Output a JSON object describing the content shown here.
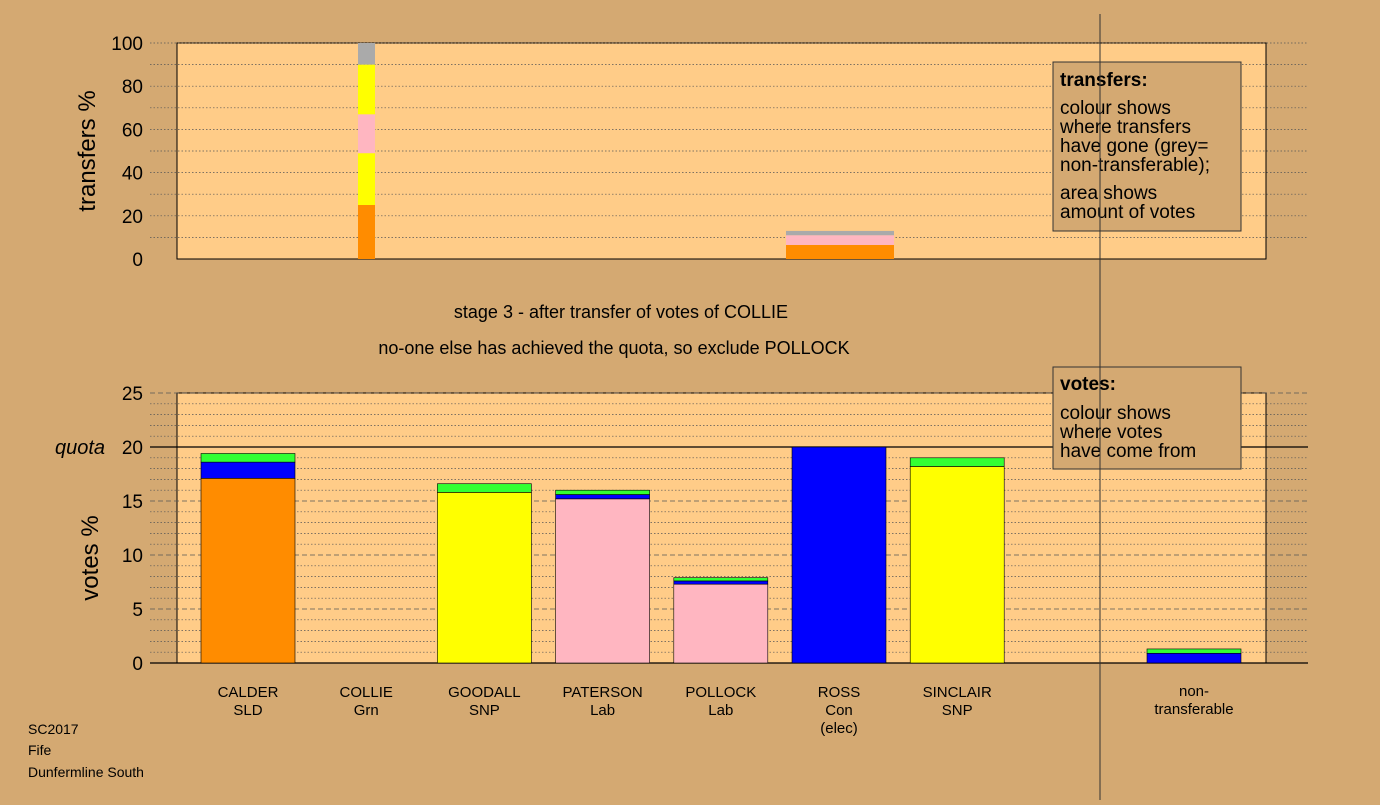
{
  "chart_data": [
    {
      "type": "bar",
      "ylabel": "transfers %",
      "ylim": [
        0,
        100
      ],
      "yticks": [
        0,
        20,
        40,
        60,
        80,
        100
      ],
      "grid": true,
      "bars": [
        {
          "candidate": "COLLIE",
          "segments": [
            {
              "party": "SLD",
              "color": "#ff8c00",
              "from": 0,
              "to": 25
            },
            {
              "party": "SNP",
              "color": "#ffff00",
              "from": 25,
              "to": 49
            },
            {
              "party": "Lab",
              "color": "#ffb6c1",
              "from": 49,
              "to": 67
            },
            {
              "party": "SNP",
              "color": "#ffff00",
              "from": 67,
              "to": 90
            },
            {
              "party": "non-transferable",
              "color": "#aaaaaa",
              "from": 90,
              "to": 100
            }
          ]
        },
        {
          "candidate": "ROSS",
          "segments": [
            {
              "party": "SLD",
              "color": "#ff8c00",
              "from": 0,
              "to": 6.5
            },
            {
              "party": "Lab",
              "color": "#ffb6c1",
              "from": 6.5,
              "to": 9
            },
            {
              "party": "Lab",
              "color": "#ffb6c1",
              "from": 9,
              "to": 11
            },
            {
              "party": "non-transferable",
              "color": "#aaaaaa",
              "from": 11,
              "to": 13
            }
          ]
        }
      ],
      "legend": {
        "title": "transfers:",
        "lines1": [
          "colour shows",
          "where transfers",
          "have gone (grey=",
          "non-transferable);"
        ],
        "lines2": [
          "area shows",
          "amount of votes"
        ]
      }
    },
    {
      "type": "bar",
      "ylabel": "votes %",
      "ylim": [
        0,
        25
      ],
      "yticks": [
        0,
        5,
        10,
        15,
        20,
        25
      ],
      "quota": 20,
      "quota_label": "quota",
      "grid": true,
      "categories": [
        {
          "name": "CALDER",
          "party": "SLD",
          "extra": ""
        },
        {
          "name": "COLLIE",
          "party": "Grn",
          "extra": ""
        },
        {
          "name": "GOODALL",
          "party": "SNP",
          "extra": ""
        },
        {
          "name": "PATERSON",
          "party": "Lab",
          "extra": ""
        },
        {
          "name": "POLLOCK",
          "party": "Lab",
          "extra": ""
        },
        {
          "name": "ROSS",
          "party": "Con",
          "extra": "(elec)"
        },
        {
          "name": "SINCLAIR",
          "party": "SNP",
          "extra": ""
        }
      ],
      "nontransferable_label": [
        "non-",
        "transferable"
      ],
      "bars": [
        {
          "candidate": "CALDER",
          "segments": [
            {
              "color": "#ff8c00",
              "from": 0,
              "to": 17.1
            },
            {
              "color": "#0000ff",
              "from": 17.1,
              "to": 18.6
            },
            {
              "color": "#33ff33",
              "from": 18.6,
              "to": 19.4
            }
          ]
        },
        {
          "candidate": "COLLIE",
          "segments": []
        },
        {
          "candidate": "GOODALL",
          "segments": [
            {
              "color": "#ffff00",
              "from": 0,
              "to": 15.8
            },
            {
              "color": "#33ff33",
              "from": 15.8,
              "to": 16.6
            }
          ]
        },
        {
          "candidate": "PATERSON",
          "segments": [
            {
              "color": "#ffb6c1",
              "from": 0,
              "to": 15.2
            },
            {
              "color": "#0000ff",
              "from": 15.2,
              "to": 15.6
            },
            {
              "color": "#33ff33",
              "from": 15.6,
              "to": 16.0
            }
          ]
        },
        {
          "candidate": "POLLOCK",
          "segments": [
            {
              "color": "#ffb6c1",
              "from": 0,
              "to": 7.3
            },
            {
              "color": "#0000ff",
              "from": 7.3,
              "to": 7.6
            },
            {
              "color": "#33ff33",
              "from": 7.6,
              "to": 7.9
            }
          ]
        },
        {
          "candidate": "ROSS",
          "segments": [
            {
              "color": "#0000ff",
              "from": 0,
              "to": 20.0
            }
          ]
        },
        {
          "candidate": "SINCLAIR",
          "segments": [
            {
              "color": "#ffff00",
              "from": 0,
              "to": 18.2
            },
            {
              "color": "#33ff33",
              "from": 18.2,
              "to": 19.0
            }
          ]
        },
        {
          "candidate": "non-transferable",
          "segments": [
            {
              "color": "#0000ff",
              "from": 0,
              "to": 0.9
            },
            {
              "color": "#33ff33",
              "from": 0.9,
              "to": 1.3
            }
          ]
        }
      ],
      "legend": {
        "title": "votes:",
        "lines": [
          "colour shows",
          "where votes",
          "have come from"
        ]
      }
    }
  ],
  "stage_text": "stage 3 - after transfer of votes of COLLIE",
  "status_text": "no-one else has achieved the quota, so exclude POLLOCK",
  "footer": [
    "SC2017",
    "Fife",
    "Dunfermline South"
  ],
  "colors": {
    "background": "#d4a972",
    "plot_area": "#ffcc88"
  }
}
